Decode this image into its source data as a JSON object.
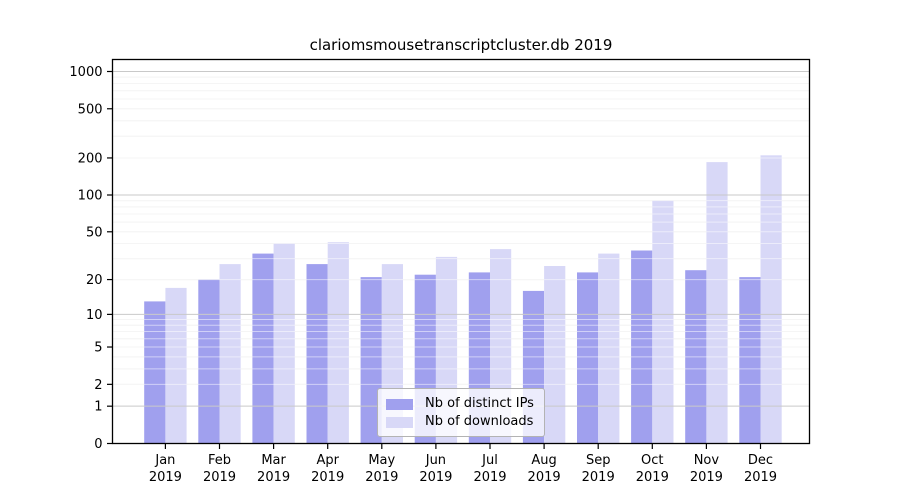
{
  "title": "clariomsmousetranscriptcluster.db 2019",
  "legend": {
    "items": [
      {
        "label": "Nb of distinct IPs",
        "key": "ips"
      },
      {
        "label": "Nb of downloads",
        "key": "downloads"
      }
    ]
  },
  "chart_data": {
    "type": "bar",
    "title": "clariomsmousetranscriptcluster.db 2019",
    "categories": [
      "Jan",
      "Feb",
      "Mar",
      "Apr",
      "May",
      "Jun",
      "Jul",
      "Aug",
      "Sep",
      "Oct",
      "Nov",
      "Dec"
    ],
    "year_label": "2019",
    "series": [
      {
        "name": "Nb of distinct IPs",
        "key": "ips",
        "color": "#a0a0ee",
        "values": [
          13,
          20,
          33,
          27,
          21,
          22,
          23,
          16,
          23,
          35,
          24,
          21
        ]
      },
      {
        "name": "Nb of downloads",
        "key": "downloads",
        "color": "#d8d8f7",
        "values": [
          17,
          27,
          40,
          41,
          27,
          31,
          36,
          26,
          33,
          90,
          185,
          210
        ]
      }
    ],
    "y_scale": "log1p",
    "y_ticks": [
      0,
      1,
      2,
      5,
      10,
      20,
      50,
      100,
      200,
      500,
      1000
    ],
    "ylim": [
      0,
      1000
    ],
    "grid": true,
    "legend_position": "inside-bottom-center"
  },
  "colors": {
    "bar_ips": "#a0a0ee",
    "bar_downloads": "#d8d8f7",
    "grid_major": "#c9c9c9",
    "grid_minor": "#ebebeb",
    "axis": "#000000",
    "text": "#000000",
    "legend_border": "#b3b3b3",
    "background": "#ffffff"
  }
}
